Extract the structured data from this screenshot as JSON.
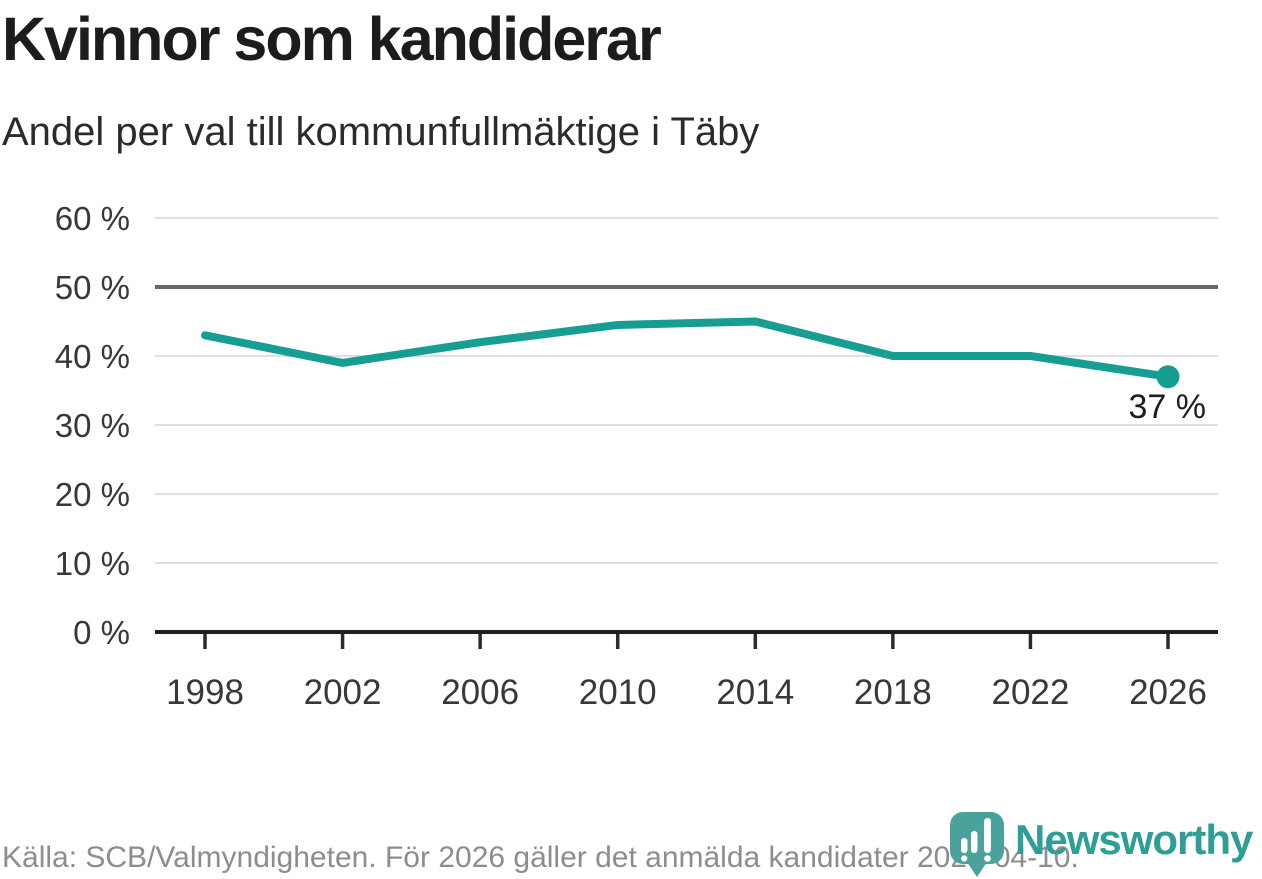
{
  "header": {
    "title": "Kvinnor som kandiderar",
    "subtitle": "Andel per val till kommunfullmäktige i Täby"
  },
  "chart_data": {
    "type": "line",
    "title": "Kvinnor som kandiderar",
    "subtitle": "Andel per val till kommunfullmäktige i Täby",
    "x": [
      1998,
      2002,
      2006,
      2010,
      2014,
      2018,
      2022,
      2026
    ],
    "values": [
      43,
      39,
      42,
      44.5,
      45,
      40,
      40,
      37
    ],
    "end_label": "37 %",
    "ylim": [
      0,
      60
    ],
    "yticks": [
      {
        "value": 0,
        "label": "0 %"
      },
      {
        "value": 10,
        "label": "10 %"
      },
      {
        "value": 20,
        "label": "20 %"
      },
      {
        "value": 30,
        "label": "30 %"
      },
      {
        "value": 40,
        "label": "40 %"
      },
      {
        "value": 50,
        "label": "50 %"
      },
      {
        "value": 60,
        "label": "60 %"
      }
    ],
    "benchmark_value": 50,
    "grid": true,
    "legend": "none",
    "line_color": "#169E92",
    "grid_color": "#E0E0E0",
    "benchmark_color": "#666666",
    "axis_color": "#1F1F1F"
  },
  "footer": {
    "source": "Källa: SCB/Valmyndigheten. För 2026 gäller det anmälda kandidater 2026-04-10."
  },
  "logo": {
    "text": "Newsworthy",
    "pin_color": "#4BA19B",
    "text_color": "#2F9E95"
  }
}
